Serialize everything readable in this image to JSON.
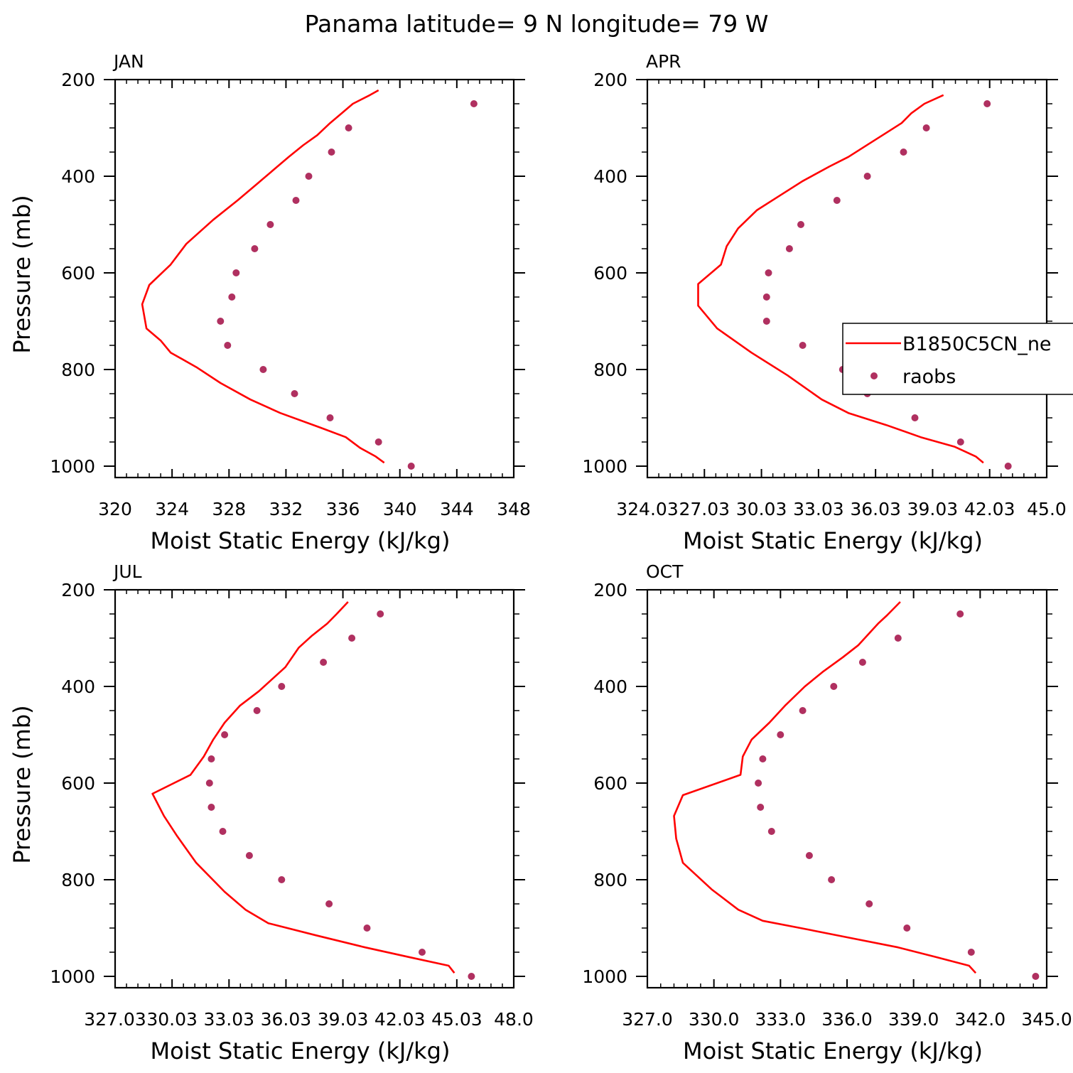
{
  "figure": {
    "title": "Panama  latitude= 9 N longitude= 79 W"
  },
  "colors": {
    "model_line": "#ff0000",
    "obs_marker": "#b03060",
    "axis": "#000000"
  },
  "legend": {
    "model_label": "B1850C5CN_ne",
    "obs_label": "raobs",
    "placement": "right side of APR panel, clipped at figure edge"
  },
  "chart_data": [
    {
      "type": "line",
      "panel_title": "JAN",
      "xlabel": "Moist Static Energy (kJ/kg)",
      "ylabel": "Pressure (mb)",
      "xlim": [
        320,
        348
      ],
      "ylim": [
        1025,
        200
      ],
      "y_inverted": true,
      "xticks": [
        320,
        324,
        328,
        332,
        336,
        340,
        344,
        348
      ],
      "xtick_labels": [
        "320",
        "324",
        "328",
        "332",
        "336",
        "340",
        "344",
        "348"
      ],
      "yticks": [
        200,
        400,
        600,
        800,
        1000
      ],
      "ytick_labels": [
        "200",
        "400",
        "600",
        "800",
        "1000"
      ],
      "series": [
        {
          "name": "B1850C5CN_ne",
          "kind": "line",
          "points": [
            [
              338.9,
              993
            ],
            [
              338.3,
              980
            ],
            [
              337.2,
              962
            ],
            [
              336.2,
              940
            ],
            [
              334.4,
              920
            ],
            [
              331.6,
              890
            ],
            [
              329.5,
              862
            ],
            [
              327.4,
              828
            ],
            [
              325.7,
              795
            ],
            [
              323.9,
              765
            ],
            [
              323.2,
              740
            ],
            [
              322.2,
              715
            ],
            [
              321.9,
              665
            ],
            [
              322.4,
              625
            ],
            [
              323.9,
              583
            ],
            [
              325.0,
              540
            ],
            [
              326.9,
              490
            ],
            [
              328.6,
              450
            ],
            [
              330.0,
              415
            ],
            [
              331.2,
              385
            ],
            [
              332.2,
              360
            ],
            [
              333.2,
              336
            ],
            [
              334.2,
              315
            ],
            [
              335.1,
              290
            ],
            [
              335.9,
              270
            ],
            [
              336.7,
              250
            ],
            [
              337.9,
              232
            ],
            [
              338.5,
              222
            ]
          ]
        },
        {
          "name": "raobs",
          "kind": "scatter",
          "points": [
            [
              345.2,
              250
            ],
            [
              336.4,
              300
            ],
            [
              335.2,
              350
            ],
            [
              333.6,
              400
            ],
            [
              332.7,
              450
            ],
            [
              330.9,
              500
            ],
            [
              329.8,
              550
            ],
            [
              328.5,
              600
            ],
            [
              328.2,
              650
            ],
            [
              327.4,
              700
            ],
            [
              327.9,
              750
            ],
            [
              330.4,
              800
            ],
            [
              332.6,
              850
            ],
            [
              335.1,
              900
            ],
            [
              338.5,
              950
            ],
            [
              340.8,
              1000
            ]
          ]
        }
      ]
    },
    {
      "type": "line",
      "panel_title": "APR",
      "xlabel": "Moist Static Energy (kJ/kg)",
      "ylabel": "",
      "xlim": [
        324.03,
        345.03
      ],
      "ylim": [
        1025,
        200
      ],
      "y_inverted": true,
      "xticks": [
        324.03,
        327.03,
        330.03,
        333.03,
        336.03,
        339.03,
        342.03,
        345.03
      ],
      "xtick_labels": [
        "324.03",
        "27.03",
        "30.03",
        "33.03",
        "36.03",
        "39.03",
        "42.03",
        "45.0"
      ],
      "yticks": [
        200,
        400,
        600,
        800,
        1000
      ],
      "ytick_labels": [
        "200",
        "400",
        "600",
        "800",
        "1000"
      ],
      "series": [
        {
          "name": "B1850C5CN_ne",
          "kind": "line",
          "points": [
            [
              341.7,
              993
            ],
            [
              341.3,
              980
            ],
            [
              340.2,
              960
            ],
            [
              338.4,
              940
            ],
            [
              336.6,
              915
            ],
            [
              334.6,
              890
            ],
            [
              333.2,
              862
            ],
            [
              331.4,
              812
            ],
            [
              329.5,
              765
            ],
            [
              328.6,
              740
            ],
            [
              327.7,
              715
            ],
            [
              326.7,
              668
            ],
            [
              326.7,
              623
            ],
            [
              327.9,
              583
            ],
            [
              328.2,
              545
            ],
            [
              328.8,
              508
            ],
            [
              329.8,
              470
            ],
            [
              331.0,
              440
            ],
            [
              332.2,
              410
            ],
            [
              333.6,
              380
            ],
            [
              334.6,
              360
            ],
            [
              335.6,
              335
            ],
            [
              336.6,
              310
            ],
            [
              337.4,
              290
            ],
            [
              337.9,
              270
            ],
            [
              338.6,
              250
            ],
            [
              339.6,
              232
            ]
          ]
        },
        {
          "name": "raobs",
          "kind": "scatter",
          "points": [
            [
              341.9,
              250
            ],
            [
              338.7,
              300
            ],
            [
              337.5,
              350
            ],
            [
              335.6,
              400
            ],
            [
              334.0,
              450
            ],
            [
              332.1,
              500
            ],
            [
              331.5,
              550
            ],
            [
              330.4,
              600
            ],
            [
              330.3,
              650
            ],
            [
              330.3,
              700
            ],
            [
              332.2,
              750
            ],
            [
              334.3,
              800
            ],
            [
              335.6,
              850
            ],
            [
              338.1,
              900
            ],
            [
              340.5,
              950
            ],
            [
              343.0,
              1000
            ]
          ]
        }
      ]
    },
    {
      "type": "line",
      "panel_title": "JUL",
      "xlabel": "Moist Static Energy (kJ/kg)",
      "ylabel": "Pressure (mb)",
      "xlim": [
        327.03,
        348.03
      ],
      "ylim": [
        1025,
        200
      ],
      "y_inverted": true,
      "xticks": [
        327.03,
        330.03,
        333.03,
        336.03,
        339.03,
        342.03,
        345.03,
        348.03
      ],
      "xtick_labels": [
        "327.03",
        "30.03",
        "33.03",
        "36.03",
        "39.03",
        "42.03",
        "45.03",
        "48.0"
      ],
      "yticks": [
        200,
        400,
        600,
        800,
        1000
      ],
      "ytick_labels": [
        "200",
        "400",
        "600",
        "800",
        "1000"
      ],
      "series": [
        {
          "name": "B1850C5CN_ne",
          "kind": "line",
          "points": [
            [
              344.9,
              993
            ],
            [
              344.6,
              978
            ],
            [
              342.5,
              960
            ],
            [
              340.2,
              940
            ],
            [
              337.6,
              915
            ],
            [
              335.1,
              890
            ],
            [
              333.9,
              862
            ],
            [
              332.8,
              825
            ],
            [
              331.3,
              765
            ],
            [
              330.3,
              710
            ],
            [
              329.6,
              668
            ],
            [
              329.0,
              622
            ],
            [
              331.0,
              583
            ],
            [
              331.7,
              545
            ],
            [
              332.2,
              510
            ],
            [
              332.8,
              475
            ],
            [
              333.6,
              440
            ],
            [
              334.6,
              410
            ],
            [
              335.3,
              385
            ],
            [
              336.0,
              360
            ],
            [
              336.7,
              320
            ],
            [
              337.4,
              295
            ],
            [
              338.2,
              270
            ],
            [
              338.7,
              250
            ],
            [
              339.3,
              225
            ]
          ]
        },
        {
          "name": "raobs",
          "kind": "scatter",
          "points": [
            [
              341.0,
              250
            ],
            [
              339.5,
              300
            ],
            [
              338.0,
              350
            ],
            [
              335.8,
              400
            ],
            [
              334.5,
              450
            ],
            [
              332.8,
              500
            ],
            [
              332.1,
              550
            ],
            [
              332.0,
              600
            ],
            [
              332.1,
              650
            ],
            [
              332.7,
              700
            ],
            [
              334.1,
              750
            ],
            [
              335.8,
              800
            ],
            [
              338.3,
              850
            ],
            [
              340.3,
              900
            ],
            [
              343.2,
              950
            ],
            [
              345.8,
              1000
            ]
          ]
        }
      ]
    },
    {
      "type": "line",
      "panel_title": "OCT",
      "xlabel": "Moist Static Energy (kJ/kg)",
      "ylabel": "",
      "xlim": [
        327.0,
        345.0
      ],
      "ylim": [
        1025,
        200
      ],
      "y_inverted": true,
      "xticks": [
        327.0,
        330.0,
        333.0,
        336.0,
        339.0,
        342.0,
        345.0
      ],
      "xtick_labels": [
        "327.0",
        "330.0",
        "333.0",
        "336.0",
        "339.0",
        "342.0",
        "345.0"
      ],
      "yticks": [
        200,
        400,
        600,
        800,
        1000
      ],
      "ytick_labels": [
        "200",
        "400",
        "600",
        "800",
        "1000"
      ],
      "series": [
        {
          "name": "B1850C5CN_ne",
          "kind": "line",
          "points": [
            [
              341.8,
              993
            ],
            [
              341.5,
              978
            ],
            [
              340.0,
              960
            ],
            [
              338.3,
              940
            ],
            [
              336.1,
              920
            ],
            [
              333.9,
              900
            ],
            [
              332.2,
              885
            ],
            [
              331.1,
              862
            ],
            [
              329.9,
              820
            ],
            [
              328.6,
              765
            ],
            [
              328.3,
              715
            ],
            [
              328.2,
              668
            ],
            [
              328.6,
              625
            ],
            [
              331.2,
              583
            ],
            [
              331.3,
              545
            ],
            [
              331.7,
              510
            ],
            [
              332.5,
              475
            ],
            [
              333.2,
              440
            ],
            [
              334.1,
              400
            ],
            [
              334.9,
              370
            ],
            [
              335.8,
              340
            ],
            [
              336.5,
              315
            ],
            [
              336.9,
              295
            ],
            [
              337.4,
              270
            ],
            [
              337.8,
              253
            ],
            [
              338.4,
              225
            ]
          ]
        },
        {
          "name": "raobs",
          "kind": "scatter",
          "points": [
            [
              341.1,
              250
            ],
            [
              338.3,
              300
            ],
            [
              336.7,
              350
            ],
            [
              335.4,
              400
            ],
            [
              334.0,
              450
            ],
            [
              333.0,
              500
            ],
            [
              332.2,
              550
            ],
            [
              332.0,
              600
            ],
            [
              332.1,
              650
            ],
            [
              332.6,
              700
            ],
            [
              334.3,
              750
            ],
            [
              335.3,
              800
            ],
            [
              337.0,
              850
            ],
            [
              338.7,
              900
            ],
            [
              341.6,
              950
            ],
            [
              344.5,
              1000
            ]
          ]
        }
      ]
    }
  ]
}
